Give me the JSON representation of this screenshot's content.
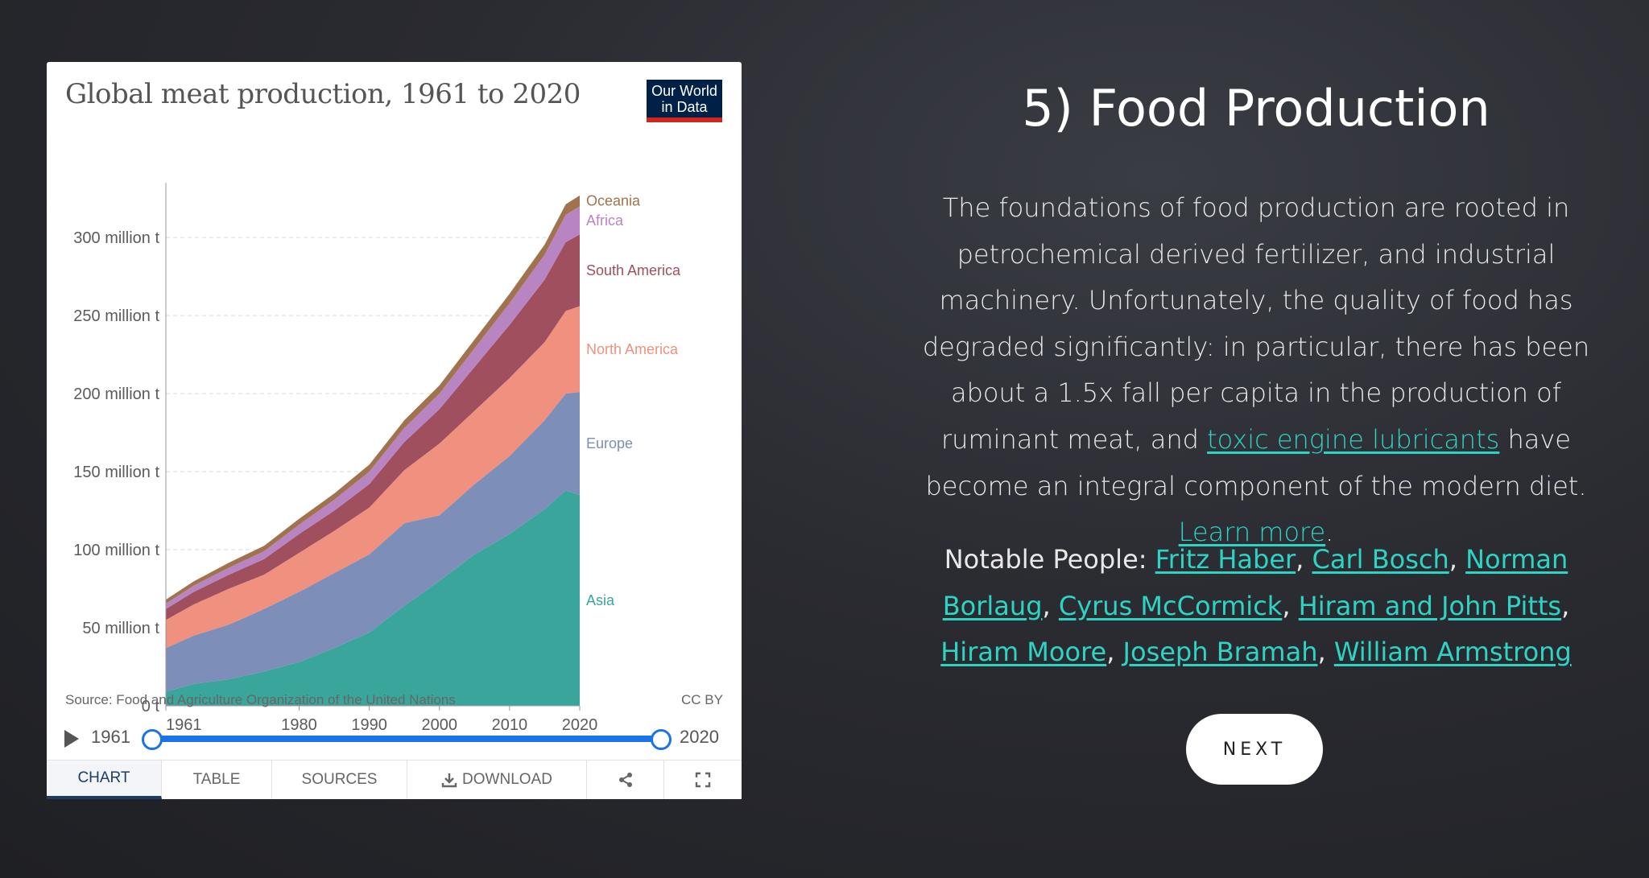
{
  "chart_card": {
    "title": "Global meat production, 1961 to 2020",
    "logo_line1": "Our World",
    "logo_line2": "in Data",
    "source": "Source: Food and Agriculture Organization of the United Nations",
    "license": "CC BY",
    "timeline": {
      "start": "1961",
      "end": "2020"
    },
    "tabs": [
      {
        "label": "CHART",
        "active": true
      },
      {
        "label": "TABLE"
      },
      {
        "label": "SOURCES"
      },
      {
        "label": "DOWNLOAD",
        "icon": "download-icon"
      },
      {
        "label": "",
        "icon": "share-icon"
      },
      {
        "label": "",
        "icon": "fullscreen-icon"
      }
    ]
  },
  "chart_data": {
    "type": "area",
    "stacked": true,
    "title": "Global meat production, 1961 to 2020",
    "ylim": [
      0,
      330
    ],
    "yticks": [
      {
        "value": 0,
        "label": "0 t"
      },
      {
        "value": 50,
        "label": "50 million t"
      },
      {
        "value": 100,
        "label": "100 million t"
      },
      {
        "value": 150,
        "label": "150 million t"
      },
      {
        "value": 200,
        "label": "200 million t"
      },
      {
        "value": 250,
        "label": "250 million t"
      },
      {
        "value": 300,
        "label": "300 million t"
      }
    ],
    "xticks": [
      "1961",
      "1980",
      "1990",
      "2000",
      "2010",
      "2020"
    ],
    "xlim": [
      1961,
      2020
    ],
    "grid": true,
    "x": [
      1961,
      1965,
      1970,
      1975,
      1980,
      1985,
      1990,
      1995,
      2000,
      2005,
      2010,
      2015,
      2018,
      2020
    ],
    "series": [
      {
        "name": "Asia",
        "color": "#3aa59b",
        "values": [
          9,
          14,
          17,
          22,
          28,
          37,
          47,
          64,
          80,
          97,
          110,
          126,
          138,
          135
        ]
      },
      {
        "name": "Europe",
        "color": "#7d8fb8",
        "values": [
          28,
          31,
          35,
          40,
          45,
          48,
          50,
          53,
          42,
          45,
          50,
          57,
          62,
          66
        ]
      },
      {
        "name": "North America",
        "color": "#f0907e",
        "values": [
          18,
          20,
          23,
          22,
          25,
          27,
          30,
          34,
          46,
          47,
          50,
          50,
          53,
          55
        ]
      },
      {
        "name": "South America",
        "color": "#9f4f5e",
        "values": [
          7,
          8,
          9,
          10,
          12,
          13,
          15,
          18,
          22,
          28,
          34,
          40,
          44,
          46
        ]
      },
      {
        "name": "Africa",
        "color": "#b884c2",
        "values": [
          3.5,
          4,
          4.5,
          5,
          6,
          7,
          8,
          9,
          10,
          12,
          14,
          16,
          17.5,
          18
        ]
      },
      {
        "name": "Oceania",
        "color": "#a0734e",
        "values": [
          2.5,
          2.8,
          3.2,
          3.5,
          3.8,
          4,
          4.5,
          5,
          5.3,
          5.7,
          6,
          6.5,
          6.8,
          7
        ]
      }
    ]
  },
  "text_panel": {
    "heading": "5) Food Production",
    "para_part1": "The foundations of food production are rooted in petrochemical derived fertilizer, and industrial machinery. Unfortunately, the quality of food has degraded significantly: in particular, there has been about a 1.5x fall per capita in the production of ruminant meat, and ",
    "link_toxic": "toxic engine lubricants",
    "para_part2": " have become an integral component of the modern diet. ",
    "link_learn": "Learn more",
    "para_end": ".",
    "people_label": "Notable People: ",
    "people": [
      "Fritz Haber",
      "Carl Bosch",
      "Norman Borlaug",
      "Cyrus McCormick",
      "Hiram and John Pitts",
      "Hiram Moore",
      "Joseph Bramah",
      "William Armstrong"
    ],
    "separator": ", ",
    "next_label": "NEXT"
  }
}
